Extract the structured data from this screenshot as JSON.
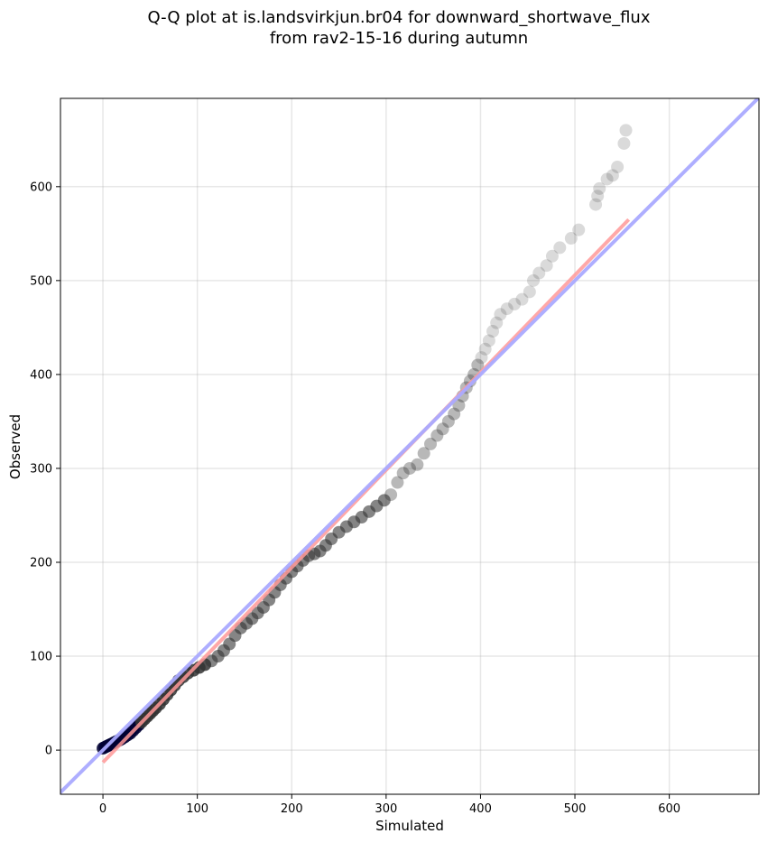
{
  "chart_data": {
    "type": "scatter",
    "title": "Q-Q plot at is.landsvirkjun.br04 for downward_shortwave_flux",
    "subtitle": "from rav2-15-16 during autumn",
    "xlabel": "Simulated",
    "ylabel": "Observed",
    "xlim": [
      -45,
      695
    ],
    "ylim": [
      -47,
      694
    ],
    "xticks": [
      0,
      100,
      200,
      300,
      400,
      500,
      600
    ],
    "yticks": [
      0,
      100,
      200,
      300,
      400,
      500,
      600
    ],
    "grid": true,
    "reference_line": {
      "name": "1:1",
      "color": "#aaaaff",
      "x": [
        -45,
        695
      ],
      "y": [
        -45,
        695
      ]
    },
    "fit_line": {
      "color": "#ff9999",
      "x": [
        0,
        557
      ],
      "y": [
        -13,
        565
      ]
    },
    "colors": {
      "points": "#333333",
      "low_points": "#000033",
      "fit": "#ff9999",
      "reference": "#aaaaff"
    },
    "points": [
      {
        "x": 0,
        "y": 2
      },
      {
        "x": 2,
        "y": 3
      },
      {
        "x": 4,
        "y": 4
      },
      {
        "x": 6,
        "y": 5
      },
      {
        "x": 8,
        "y": 6
      },
      {
        "x": 10,
        "y": 7
      },
      {
        "x": 12,
        "y": 8
      },
      {
        "x": 14,
        "y": 9
      },
      {
        "x": 16,
        "y": 10
      },
      {
        "x": 18,
        "y": 11
      },
      {
        "x": 20,
        "y": 12
      },
      {
        "x": 23,
        "y": 14
      },
      {
        "x": 26,
        "y": 16
      },
      {
        "x": 29,
        "y": 18
      },
      {
        "x": 32,
        "y": 21
      },
      {
        "x": 35,
        "y": 24
      },
      {
        "x": 38,
        "y": 27
      },
      {
        "x": 41,
        "y": 30
      },
      {
        "x": 44,
        "y": 33
      },
      {
        "x": 47,
        "y": 36
      },
      {
        "x": 50,
        "y": 39
      },
      {
        "x": 53,
        "y": 42
      },
      {
        "x": 56,
        "y": 45
      },
      {
        "x": 60,
        "y": 49
      },
      {
        "x": 64,
        "y": 54
      },
      {
        "x": 68,
        "y": 59
      },
      {
        "x": 72,
        "y": 64
      },
      {
        "x": 76,
        "y": 69
      },
      {
        "x": 80,
        "y": 74
      },
      {
        "x": 85,
        "y": 78
      },
      {
        "x": 90,
        "y": 82
      },
      {
        "x": 96,
        "y": 85
      },
      {
        "x": 102,
        "y": 88
      },
      {
        "x": 108,
        "y": 91
      },
      {
        "x": 115,
        "y": 95
      },
      {
        "x": 122,
        "y": 100
      },
      {
        "x": 128,
        "y": 106
      },
      {
        "x": 134,
        "y": 113
      },
      {
        "x": 140,
        "y": 122
      },
      {
        "x": 146,
        "y": 130
      },
      {
        "x": 152,
        "y": 135
      },
      {
        "x": 158,
        "y": 140
      },
      {
        "x": 164,
        "y": 146
      },
      {
        "x": 170,
        "y": 152
      },
      {
        "x": 176,
        "y": 160
      },
      {
        "x": 182,
        "y": 168
      },
      {
        "x": 188,
        "y": 176
      },
      {
        "x": 194,
        "y": 183
      },
      {
        "x": 200,
        "y": 190
      },
      {
        "x": 206,
        "y": 196
      },
      {
        "x": 212,
        "y": 202
      },
      {
        "x": 218,
        "y": 207
      },
      {
        "x": 224,
        "y": 209
      },
      {
        "x": 230,
        "y": 212
      },
      {
        "x": 236,
        "y": 218
      },
      {
        "x": 242,
        "y": 225
      },
      {
        "x": 250,
        "y": 232
      },
      {
        "x": 258,
        "y": 238
      },
      {
        "x": 266,
        "y": 243
      },
      {
        "x": 274,
        "y": 248
      },
      {
        "x": 282,
        "y": 254
      },
      {
        "x": 290,
        "y": 260
      },
      {
        "x": 298,
        "y": 266
      },
      {
        "x": 305,
        "y": 272
      },
      {
        "x": 312,
        "y": 285
      },
      {
        "x": 318,
        "y": 295
      },
      {
        "x": 325,
        "y": 300
      },
      {
        "x": 333,
        "y": 304
      },
      {
        "x": 340,
        "y": 316
      },
      {
        "x": 347,
        "y": 326
      },
      {
        "x": 354,
        "y": 335
      },
      {
        "x": 360,
        "y": 342
      },
      {
        "x": 366,
        "y": 350
      },
      {
        "x": 372,
        "y": 358
      },
      {
        "x": 377,
        "y": 367
      },
      {
        "x": 381,
        "y": 377
      },
      {
        "x": 385,
        "y": 386
      },
      {
        "x": 389,
        "y": 393
      },
      {
        "x": 393,
        "y": 400
      },
      {
        "x": 397,
        "y": 410
      },
      {
        "x": 401,
        "y": 418
      },
      {
        "x": 405,
        "y": 427
      },
      {
        "x": 409,
        "y": 436
      },
      {
        "x": 413,
        "y": 446
      },
      {
        "x": 417,
        "y": 455
      },
      {
        "x": 421,
        "y": 464
      },
      {
        "x": 428,
        "y": 470
      },
      {
        "x": 436,
        "y": 475
      },
      {
        "x": 444,
        "y": 480
      },
      {
        "x": 452,
        "y": 488
      },
      {
        "x": 456,
        "y": 500
      },
      {
        "x": 462,
        "y": 508
      },
      {
        "x": 470,
        "y": 516
      },
      {
        "x": 476,
        "y": 526
      },
      {
        "x": 484,
        "y": 535
      },
      {
        "x": 496,
        "y": 545
      },
      {
        "x": 504,
        "y": 554
      },
      {
        "x": 522,
        "y": 581
      },
      {
        "x": 524,
        "y": 590
      },
      {
        "x": 526,
        "y": 598
      },
      {
        "x": 534,
        "y": 608
      },
      {
        "x": 540,
        "y": 612
      },
      {
        "x": 545,
        "y": 621
      },
      {
        "x": 552,
        "y": 646
      },
      {
        "x": 554,
        "y": 660
      }
    ]
  }
}
